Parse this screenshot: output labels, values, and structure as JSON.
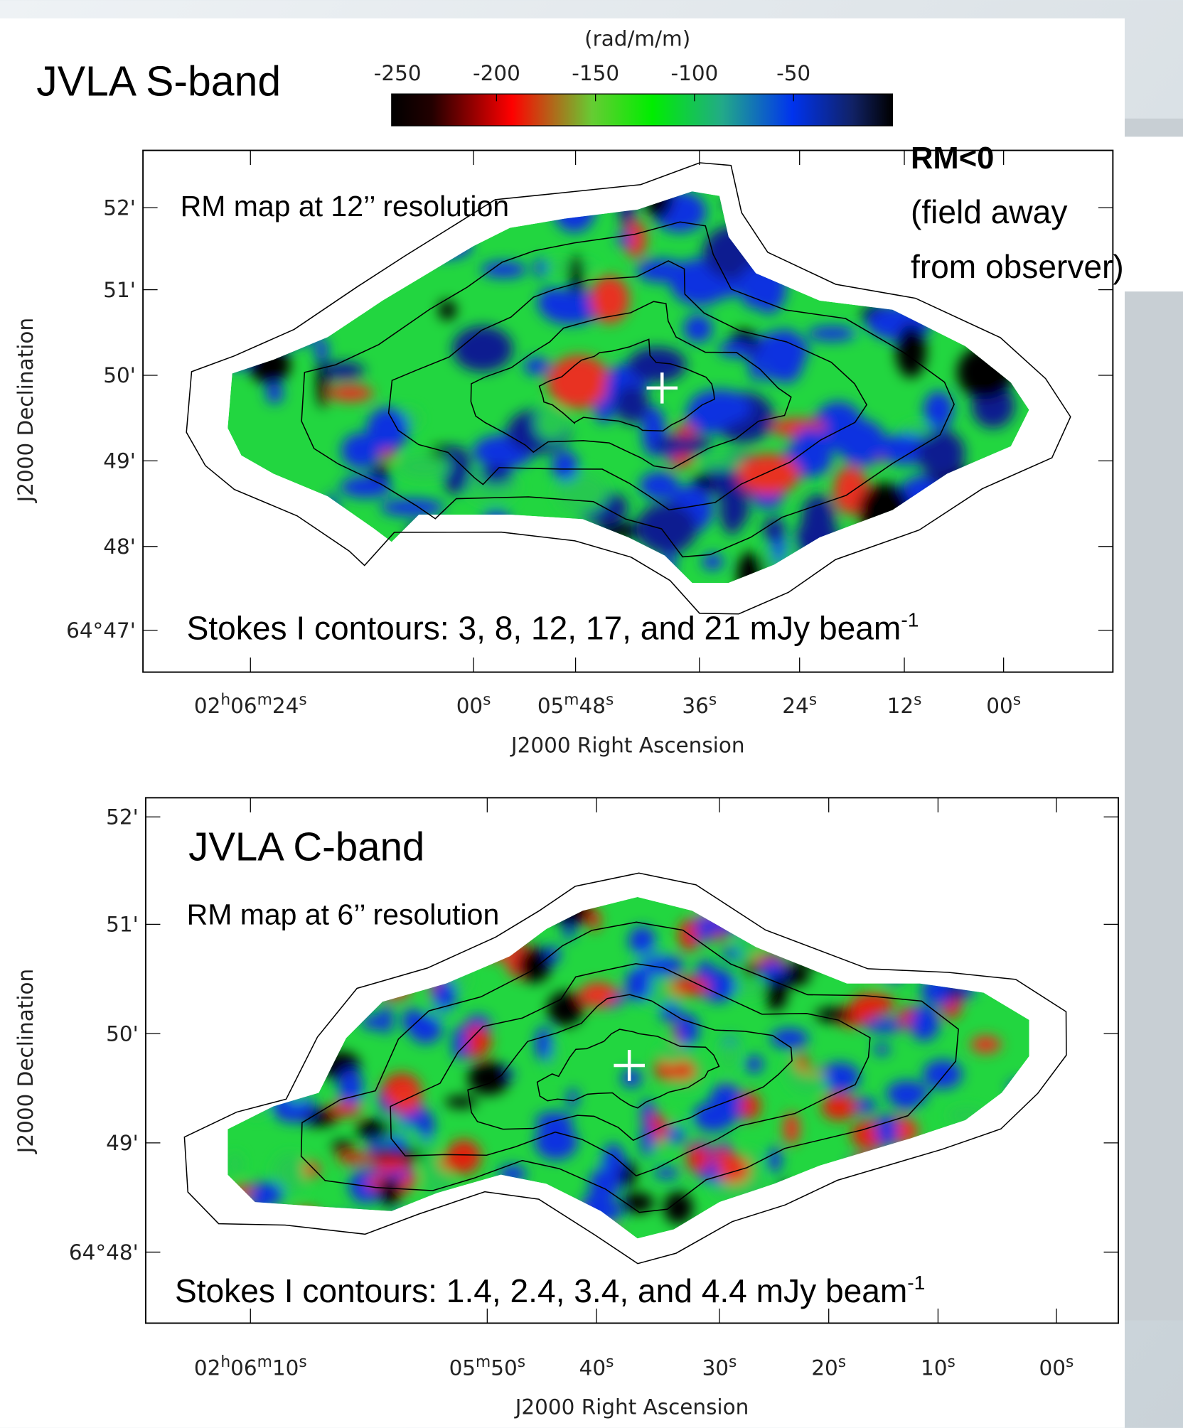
{
  "top_title": "JVLA S-band",
  "colorbar": {
    "unit": "(rad/m/m)",
    "ticks": [
      -250,
      -200,
      -150,
      -100,
      -50
    ],
    "range": [
      -253,
      0
    ]
  },
  "annotation": {
    "title": "RM<0",
    "lines": [
      "(field away",
      "from observer)"
    ]
  },
  "panels": [
    {
      "band_title": null,
      "map_label": "RM map at 12’’ resolution",
      "y_ticks": [
        "52'",
        "51'",
        "50'",
        "49'",
        "48'",
        "64°47'"
      ],
      "x_ticks": [
        [
          "02",
          "h",
          "06",
          "m",
          "24",
          "s"
        ],
        [
          "00",
          "s"
        ],
        [
          "05",
          "m",
          "48",
          "s"
        ],
        [
          "36",
          "s"
        ],
        [
          "24",
          "s"
        ],
        [
          "12",
          "s"
        ],
        [
          "00",
          "s"
        ]
      ],
      "y_axis_label": "J2000 Declination",
      "x_axis_label": "J2000 Right Ascension",
      "contours": {
        "text": "Stokes I contours: 3, 8, 12, 17, and 21 mJy beam",
        "sup": "-1"
      }
    },
    {
      "band_title": "JVLA C-band",
      "map_label": "RM map at 6’’ resolution",
      "y_ticks": [
        "52'",
        "51'",
        "50'",
        "49'",
        "64°48'"
      ],
      "x_ticks": [
        [
          "02",
          "h",
          "06",
          "m",
          "10",
          "s"
        ],
        [
          "05",
          "m",
          "50",
          "s"
        ],
        [
          "40",
          "s"
        ],
        [
          "30",
          "s"
        ],
        [
          "20",
          "s"
        ],
        [
          "10",
          "s"
        ],
        [
          "00",
          "s"
        ]
      ],
      "y_axis_label": "J2000 Declination",
      "x_axis_label": "J2000 Right Ascension",
      "contours": {
        "text": "Stokes I contours: 1.4, 2.4, 3.4, and 4.4 mJy beam",
        "sup": "-1"
      }
    }
  ]
}
